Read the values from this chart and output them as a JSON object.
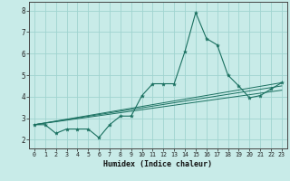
{
  "title": "",
  "xlabel": "Humidex (Indice chaleur)",
  "ylabel": "",
  "background_color": "#c8ebe8",
  "grid_color": "#a0d4d0",
  "line_color": "#1a7060",
  "xlim": [
    -0.5,
    23.5
  ],
  "ylim": [
    1.6,
    8.4
  ],
  "x_ticks": [
    0,
    1,
    2,
    3,
    4,
    5,
    6,
    7,
    8,
    9,
    10,
    11,
    12,
    13,
    14,
    15,
    16,
    17,
    18,
    19,
    20,
    21,
    22,
    23
  ],
  "y_ticks": [
    2,
    3,
    4,
    5,
    6,
    7,
    8
  ],
  "line1_x": [
    0,
    1,
    2,
    3,
    4,
    5,
    6,
    7,
    8,
    9,
    10,
    11,
    12,
    13,
    14,
    15,
    16,
    17,
    18,
    19,
    20,
    21,
    22,
    23
  ],
  "line1_y": [
    2.7,
    2.7,
    2.3,
    2.5,
    2.5,
    2.5,
    2.1,
    2.7,
    3.1,
    3.1,
    4.05,
    4.6,
    4.6,
    4.6,
    6.1,
    7.9,
    6.7,
    6.4,
    5.0,
    4.5,
    3.95,
    4.05,
    4.35,
    4.65
  ],
  "line2_x": [
    0,
    23
  ],
  "line2_y": [
    2.7,
    4.3
  ],
  "line3_x": [
    0,
    23
  ],
  "line3_y": [
    2.7,
    4.5
  ],
  "line4_x": [
    0,
    23
  ],
  "line4_y": [
    2.7,
    4.65
  ]
}
